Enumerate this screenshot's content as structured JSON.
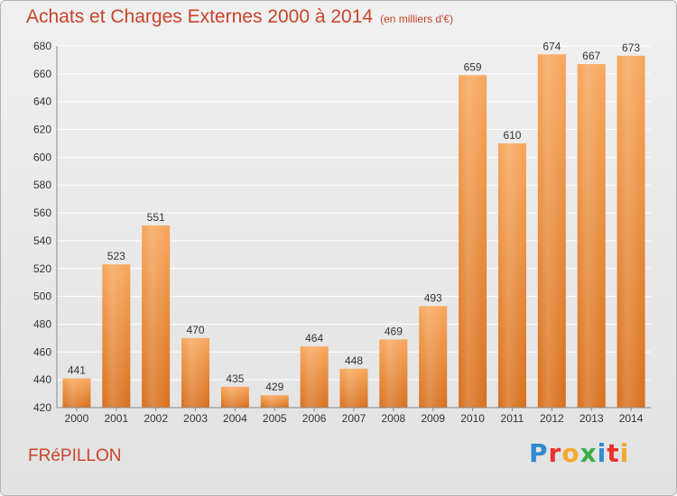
{
  "header": {
    "title": "Achats et Charges Externes 2000 à 2014",
    "unit": "(en milliers d'€)"
  },
  "footer": {
    "commune": "FRéPILLON",
    "logo_letters": [
      "P",
      "r",
      "o",
      "x",
      "i",
      "t",
      "i"
    ],
    "logo_colors": [
      "#2e8bd0",
      "#e8332a",
      "#f3a82c",
      "#3cae49",
      "#2e8bd0",
      "#e8332a",
      "#f3a82c"
    ]
  },
  "colors": {
    "accent": "#c8442a",
    "bar_light": "#f7a65a",
    "bar_dark": "#d86f1c",
    "grid": "#ffffff",
    "text": "#333333"
  },
  "chart_data": {
    "type": "bar",
    "title": "Achats et Charges Externes 2000 à 2014",
    "ylabel": "",
    "xlabel": "",
    "categories": [
      "2000",
      "2001",
      "2002",
      "2003",
      "2004",
      "2005",
      "2006",
      "2007",
      "2008",
      "2009",
      "2010",
      "2011",
      "2012",
      "2013",
      "2014"
    ],
    "values": [
      441,
      523,
      551,
      470,
      435,
      429,
      464,
      448,
      469,
      493,
      659,
      610,
      674,
      667,
      673
    ],
    "ylim": [
      420,
      680
    ],
    "yticks": [
      420,
      440,
      460,
      480,
      500,
      520,
      540,
      560,
      580,
      600,
      620,
      640,
      660,
      680
    ],
    "grid": true
  }
}
